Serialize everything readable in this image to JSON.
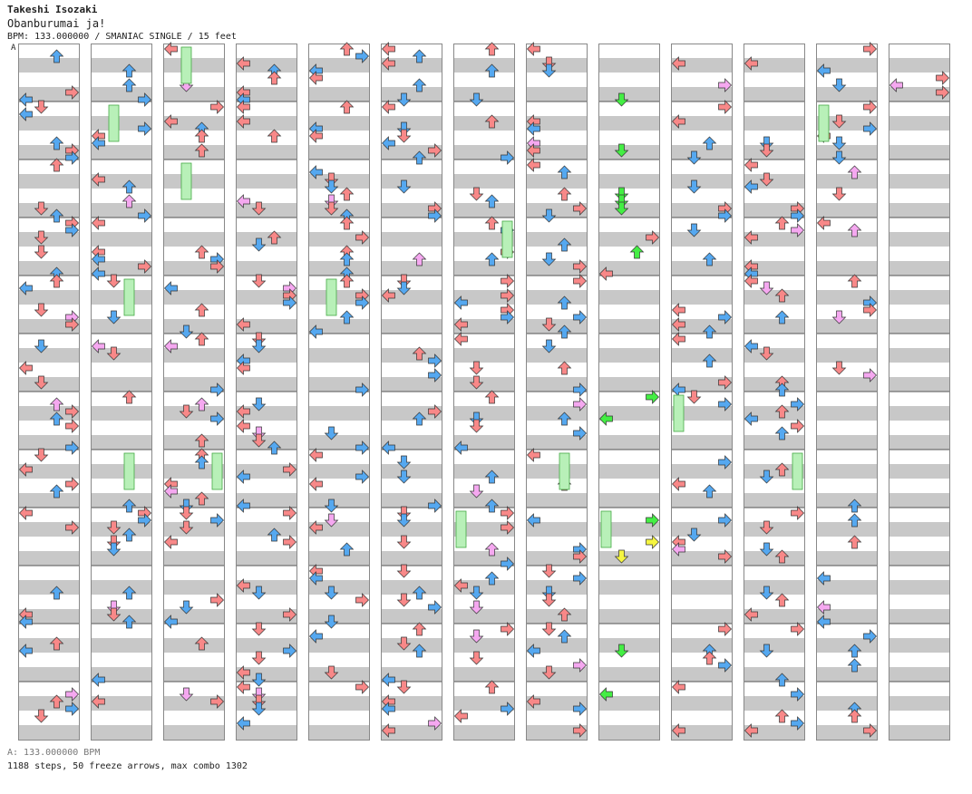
{
  "artist": "Takeshi Isozaki",
  "title": "Obanburumai ja!",
  "meta_line": "BPM: 133.000000 / SMANIAC SINGLE / 15 feet",
  "bpm_marker": "A",
  "bpm_legend": "A: 133.000000 BPM",
  "stats_line": "1188 steps, 50 freeze arrows, max combo 1302",
  "colors": {
    "quarter_note": "#f88888",
    "eighth_note": "#55a8f0",
    "sixteenth_note": "#f5a8f0",
    "freeze": "#b8f0b8",
    "freeze_border": "#44aa44",
    "shock_green": "#44ee44",
    "yellow_note": "#f5f540",
    "band_gray": "#c8c8c8",
    "column_border": "#888888"
  },
  "chart": {
    "columns": 13,
    "lanes": [
      "left",
      "down",
      "up",
      "right"
    ],
    "last_column_measures": 2
  }
}
